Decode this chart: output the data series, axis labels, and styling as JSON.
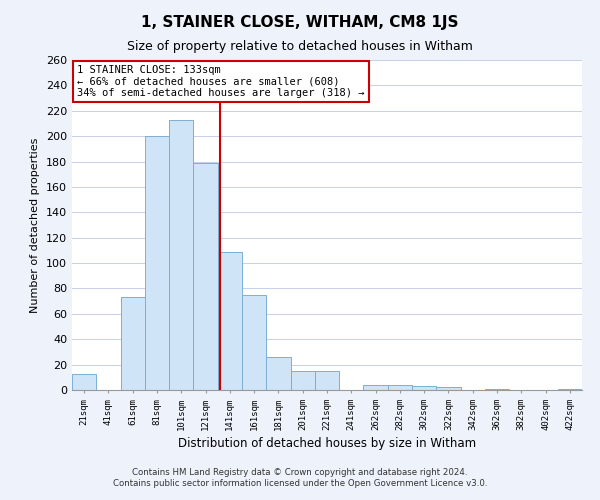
{
  "title": "1, STAINER CLOSE, WITHAM, CM8 1JS",
  "subtitle": "Size of property relative to detached houses in Witham",
  "xlabel": "Distribution of detached houses by size in Witham",
  "ylabel": "Number of detached properties",
  "categories": [
    "21sqm",
    "41sqm",
    "61sqm",
    "81sqm",
    "101sqm",
    "121sqm",
    "141sqm",
    "161sqm",
    "181sqm",
    "201sqm",
    "221sqm",
    "241sqm",
    "262sqm",
    "282sqm",
    "302sqm",
    "322sqm",
    "342sqm",
    "362sqm",
    "382sqm",
    "402sqm",
    "422sqm"
  ],
  "values": [
    13,
    0,
    73,
    200,
    213,
    179,
    109,
    75,
    26,
    15,
    15,
    0,
    4,
    4,
    3,
    2,
    0,
    1,
    0,
    0,
    1
  ],
  "bar_color": "#d0e4f7",
  "bar_edge_color": "#7aafd4",
  "vline_color": "#cc0000",
  "annotation_title": "1 STAINER CLOSE: 133sqm",
  "annotation_line1": "← 66% of detached houses are smaller (608)",
  "annotation_line2": "34% of semi-detached houses are larger (318) →",
  "annotation_box_color": "#ffffff",
  "annotation_box_edge": "#cc0000",
  "footnote1": "Contains HM Land Registry data © Crown copyright and database right 2024.",
  "footnote2": "Contains public sector information licensed under the Open Government Licence v3.0.",
  "ylim": [
    0,
    260
  ],
  "yticks": [
    0,
    20,
    40,
    60,
    80,
    100,
    120,
    140,
    160,
    180,
    200,
    220,
    240,
    260
  ],
  "background_color": "#eef2fb",
  "plot_bg_color": "#ffffff",
  "grid_color": "#c8d0e8"
}
